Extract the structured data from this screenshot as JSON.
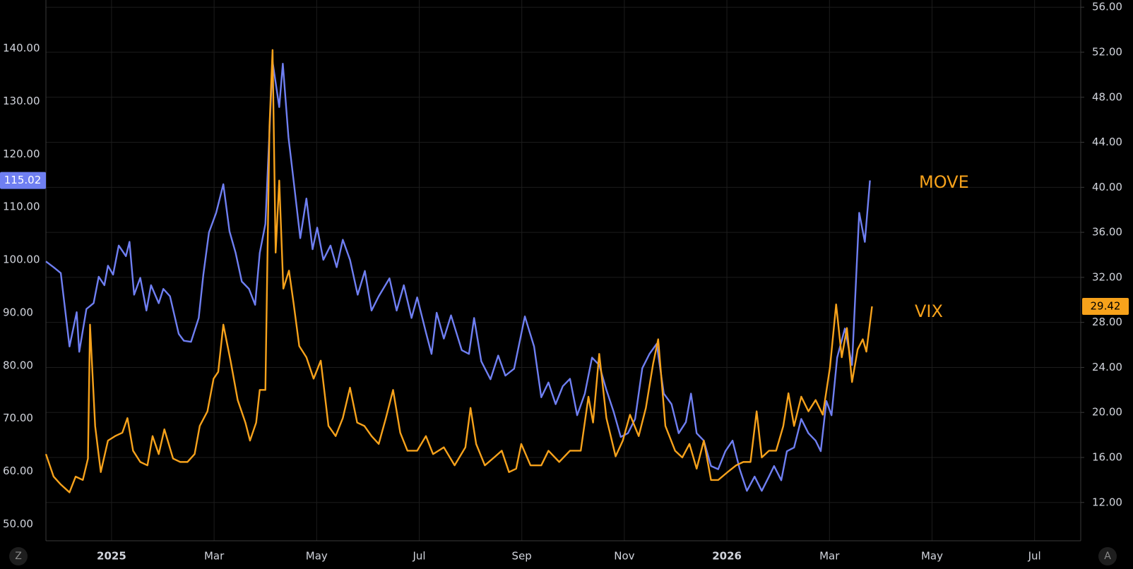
{
  "chart_data": {
    "type": "line",
    "series": [
      {
        "name": "MOVE",
        "color": "#6f7ff2",
        "axis": "y",
        "x": [
          -1.28,
          -1.13,
          -0.99,
          -0.82,
          -0.68,
          -0.63,
          -0.49,
          -0.35,
          -0.25,
          -0.14,
          -0.07,
          0.03,
          0.14,
          0.28,
          0.35,
          0.44,
          0.56,
          0.68,
          0.77,
          0.92,
          1.01,
          1.14,
          1.31,
          1.41,
          1.55,
          1.7,
          1.79,
          1.9,
          2.04,
          2.18,
          2.3,
          2.42,
          2.54,
          2.68,
          2.8,
          2.89,
          3.0,
          3.14,
          3.27,
          3.34,
          3.45,
          3.55,
          3.68,
          3.8,
          3.92,
          4.01,
          4.13,
          4.27,
          4.39,
          4.51,
          4.65,
          4.8,
          4.94,
          5.07,
          5.21,
          5.42,
          5.56,
          5.7,
          5.85,
          5.96,
          6.13,
          6.24,
          6.34,
          6.48,
          6.62,
          6.83,
          6.97,
          7.07,
          7.21,
          7.39,
          7.54,
          7.68,
          7.85,
          8.06,
          8.24,
          8.38,
          8.52,
          8.66,
          8.8,
          8.94,
          9.08,
          9.23,
          9.37,
          9.51,
          9.65,
          9.79,
          9.93,
          10.07,
          10.21,
          10.35,
          10.49,
          10.63,
          10.77,
          10.92,
          11.06,
          11.2,
          11.3,
          11.41,
          11.55,
          11.69,
          11.83,
          11.97,
          12.11,
          12.25,
          12.39,
          12.54,
          12.68,
          12.82,
          12.92,
          13.06,
          13.17,
          13.31,
          13.45,
          13.59,
          13.73,
          13.83,
          13.94,
          14.04,
          14.15,
          14.3,
          14.44,
          14.58,
          14.69,
          14.79
        ],
        "values": [
          99.7,
          98.6,
          97.5,
          83.6,
          90.1,
          82.6,
          90.7,
          91.8,
          96.8,
          95.2,
          98.9,
          97.2,
          102.7,
          100.7,
          103.4,
          93.4,
          96.6,
          90.4,
          95.2,
          91.8,
          94.5,
          93.1,
          86.0,
          84.7,
          84.5,
          89.0,
          97.2,
          105.2,
          108.9,
          114.3,
          105.4,
          101.3,
          95.9,
          94.5,
          91.5,
          101.3,
          106.8,
          137.5,
          128.9,
          137.1,
          123.2,
          115.0,
          104.1,
          111.6,
          102.0,
          106.1,
          100.0,
          102.7,
          98.6,
          103.8,
          100.0,
          93.4,
          97.9,
          90.4,
          93.1,
          96.5,
          90.4,
          95.2,
          89.0,
          92.9,
          86.3,
          82.2,
          90.0,
          85.1,
          89.5,
          82.9,
          82.2,
          89.0,
          80.8,
          77.4,
          81.9,
          78.1,
          79.4,
          89.3,
          83.6,
          74.0,
          76.8,
          72.7,
          76.1,
          77.5,
          70.6,
          74.7,
          81.5,
          80.1,
          75.4,
          71.3,
          66.5,
          67.2,
          69.9,
          79.5,
          82.2,
          84.1,
          74.7,
          72.7,
          67.2,
          69.3,
          74.7,
          67.2,
          65.8,
          61.0,
          60.4,
          63.8,
          65.8,
          60.4,
          56.3,
          59.0,
          56.3,
          59.0,
          61.0,
          58.3,
          63.8,
          64.5,
          69.9,
          67.2,
          65.8,
          63.8,
          73.3,
          70.6,
          81.5,
          87.0,
          80.1,
          108.9,
          103.4,
          115.02
        ]
      },
      {
        "name": "VIX",
        "color": "#f7a21b",
        "axis": "y2",
        "x": [
          -1.28,
          -1.13,
          -0.99,
          -0.82,
          -0.7,
          -0.56,
          -0.46,
          -0.42,
          -0.32,
          -0.21,
          -0.07,
          0.07,
          0.21,
          0.31,
          0.42,
          0.56,
          0.7,
          0.8,
          0.92,
          1.03,
          1.2,
          1.34,
          1.48,
          1.62,
          1.72,
          1.87,
          1.99,
          2.08,
          2.18,
          2.32,
          2.46,
          2.61,
          2.7,
          2.82,
          2.89,
          3.0,
          3.08,
          3.14,
          3.2,
          3.27,
          3.35,
          3.46,
          3.55,
          3.66,
          3.8,
          3.94,
          4.08,
          4.23,
          4.37,
          4.51,
          4.65,
          4.79,
          4.93,
          5.07,
          5.21,
          5.35,
          5.49,
          5.63,
          5.77,
          5.96,
          6.13,
          6.27,
          6.48,
          6.69,
          6.9,
          7.0,
          7.11,
          7.28,
          7.46,
          7.61,
          7.75,
          7.89,
          7.99,
          8.17,
          8.38,
          8.52,
          8.73,
          8.94,
          9.15,
          9.3,
          9.39,
          9.51,
          9.65,
          9.83,
          9.97,
          10.11,
          10.28,
          10.42,
          10.56,
          10.66,
          10.8,
          10.99,
          11.13,
          11.27,
          11.41,
          11.55,
          11.69,
          11.83,
          12.04,
          12.18,
          12.32,
          12.46,
          12.58,
          12.68,
          12.82,
          12.96,
          13.1,
          13.2,
          13.31,
          13.45,
          13.59,
          13.73,
          13.87,
          14.01,
          14.13,
          14.24,
          14.34,
          14.44,
          14.55,
          14.65,
          14.72,
          14.83
        ],
        "values": [
          16.3,
          14.3,
          13.6,
          12.9,
          14.3,
          14.0,
          15.9,
          27.8,
          18.8,
          14.7,
          17.5,
          17.9,
          18.2,
          19.5,
          16.6,
          15.6,
          15.3,
          17.9,
          16.3,
          18.5,
          15.9,
          15.6,
          15.6,
          16.3,
          18.8,
          20.1,
          23.0,
          23.6,
          27.8,
          24.6,
          21.1,
          19.1,
          17.5,
          19.1,
          22.0,
          22.0,
          45.4,
          52.2,
          34.2,
          40.6,
          31.0,
          32.6,
          29.7,
          25.9,
          24.9,
          23.0,
          24.6,
          18.8,
          17.9,
          19.5,
          22.2,
          19.1,
          18.8,
          17.9,
          17.2,
          19.5,
          22.0,
          18.2,
          16.6,
          16.6,
          17.9,
          16.3,
          16.9,
          15.3,
          16.9,
          20.4,
          17.2,
          15.3,
          16.0,
          16.6,
          14.7,
          15.0,
          17.2,
          15.3,
          15.3,
          16.6,
          15.6,
          16.6,
          16.6,
          21.4,
          19.1,
          25.2,
          19.5,
          16.1,
          17.5,
          19.8,
          17.9,
          20.4,
          24.3,
          26.5,
          18.8,
          16.6,
          16.0,
          17.2,
          15.0,
          17.5,
          14.0,
          14.0,
          14.8,
          15.3,
          15.6,
          15.6,
          20.1,
          16.0,
          16.6,
          16.6,
          18.8,
          21.7,
          18.8,
          21.4,
          20.1,
          21.1,
          19.8,
          24.0,
          29.6,
          24.9,
          27.5,
          22.7,
          25.6,
          26.5,
          25.4,
          29.42
        ]
      }
    ],
    "xlim": [
      -1.28,
      18.9
    ],
    "xticks": [
      {
        "value": 0,
        "label": "2025"
      },
      {
        "value": 2,
        "label": "Mar"
      },
      {
        "value": 4,
        "label": "May"
      },
      {
        "value": 6,
        "label": "Jul"
      },
      {
        "value": 8,
        "label": "Sep"
      },
      {
        "value": 10,
        "label": "Nov"
      },
      {
        "value": 12,
        "label": "2026"
      },
      {
        "value": 14,
        "label": "Mar"
      },
      {
        "value": 16,
        "label": "May"
      },
      {
        "value": 18,
        "label": "Jul"
      }
    ],
    "ylim": [
      46.86,
      149.15
    ],
    "yticks": [
      {
        "value": 50,
        "label": "50.00"
      },
      {
        "value": 60,
        "label": "60.00"
      },
      {
        "value": 70,
        "label": "70.00"
      },
      {
        "value": 80,
        "label": "80.00"
      },
      {
        "value": 90,
        "label": "90.00"
      },
      {
        "value": 100,
        "label": "100.00"
      },
      {
        "value": 110,
        "label": "110.00"
      },
      {
        "value": 120,
        "label": "120.00"
      },
      {
        "value": 130,
        "label": "130.00"
      },
      {
        "value": 140,
        "label": "140.00"
      }
    ],
    "y2lim": [
      8.6,
      56.64
    ],
    "y2ticks": [
      {
        "value": 12,
        "label": "12.00"
      },
      {
        "value": 16,
        "label": "16.00"
      },
      {
        "value": 20,
        "label": "20.00"
      },
      {
        "value": 24,
        "label": "24.00"
      },
      {
        "value": 28,
        "label": "28.00"
      },
      {
        "value": 32,
        "label": "32.00"
      },
      {
        "value": 36,
        "label": "36.00"
      },
      {
        "value": 40,
        "label": "40.00"
      },
      {
        "value": 44,
        "label": "44.00"
      },
      {
        "value": 48,
        "label": "48.00"
      },
      {
        "value": 52,
        "label": "52.00"
      },
      {
        "value": 56,
        "label": "56.00"
      }
    ],
    "grid": true,
    "grid_axis": "y2",
    "label_color": "#f7a21b"
  },
  "buttons": [
    "Z",
    "A"
  ]
}
